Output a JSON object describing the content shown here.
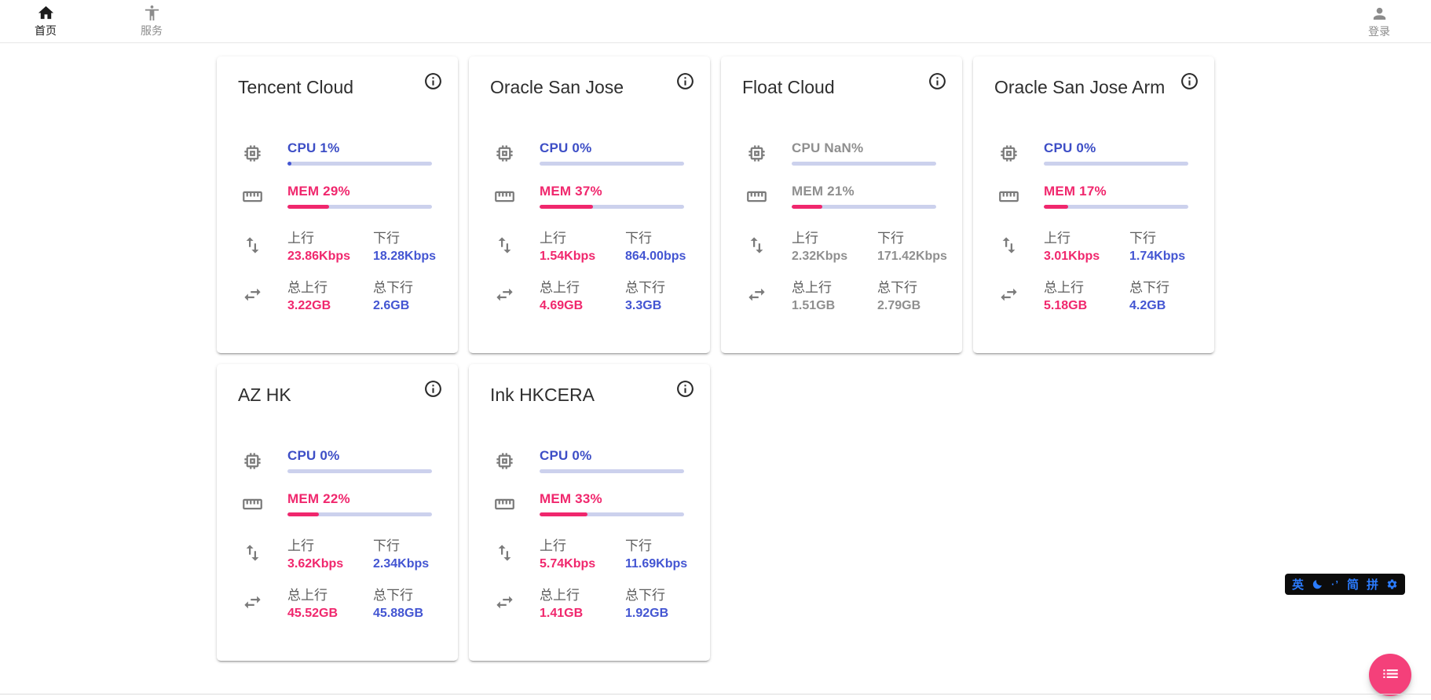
{
  "nav": {
    "home": {
      "label": "首页"
    },
    "services": {
      "label": "服务"
    },
    "login": {
      "label": "登录"
    }
  },
  "labels": {
    "upload": "上行",
    "download": "下行",
    "total_upload": "总上行",
    "total_download": "总下行"
  },
  "colors": {
    "cpu_blue": "#3d4ec6",
    "mem_pink": "#f0276d",
    "bar_track": "#ccd1ed",
    "offline_gray": "#8f8f8f",
    "fab_pink": "#f4407a",
    "ime_blue": "#2b7cff"
  },
  "servers": [
    {
      "name": "Tencent Cloud",
      "cpu_label": "CPU 1%",
      "cpu_pct": 1,
      "mem_label": "MEM 29%",
      "mem_pct": 29,
      "upload": "23.86Kbps",
      "download": "18.28Kbps",
      "total_upload": "3.22GB",
      "total_download": "2.6GB",
      "online": true
    },
    {
      "name": "Oracle San Jose",
      "cpu_label": "CPU 0%",
      "cpu_pct": 0,
      "mem_label": "MEM 37%",
      "mem_pct": 37,
      "upload": "1.54Kbps",
      "download": "864.00bps",
      "total_upload": "4.69GB",
      "total_download": "3.3GB",
      "online": true
    },
    {
      "name": "Float Cloud",
      "cpu_label": "CPU NaN%",
      "cpu_pct": 0,
      "mem_label": "MEM 21%",
      "mem_pct": 21,
      "upload": "2.32Kbps",
      "download": "171.42Kbps",
      "total_upload": "1.51GB",
      "total_download": "2.79GB",
      "online": false
    },
    {
      "name": "Oracle San Jose Arm",
      "cpu_label": "CPU 0%",
      "cpu_pct": 0,
      "mem_label": "MEM 17%",
      "mem_pct": 17,
      "upload": "3.01Kbps",
      "download": "1.74Kbps",
      "total_upload": "5.18GB",
      "total_download": "4.2GB",
      "online": true
    },
    {
      "name": "AZ HK",
      "cpu_label": "CPU 0%",
      "cpu_pct": 0,
      "mem_label": "MEM 22%",
      "mem_pct": 22,
      "upload": "3.62Kbps",
      "download": "2.34Kbps",
      "total_upload": "45.52GB",
      "total_download": "45.88GB",
      "online": true
    },
    {
      "name": "Ink HKCERA",
      "cpu_label": "CPU 0%",
      "cpu_pct": 0,
      "mem_label": "MEM 33%",
      "mem_pct": 33,
      "upload": "5.74Kbps",
      "download": "11.69Kbps",
      "total_upload": "1.41GB",
      "total_download": "1.92GB",
      "online": true
    }
  ],
  "ime_toolbar": {
    "lang": "英",
    "simplified": "简",
    "pinyin": "拼",
    "punct": "·’"
  }
}
